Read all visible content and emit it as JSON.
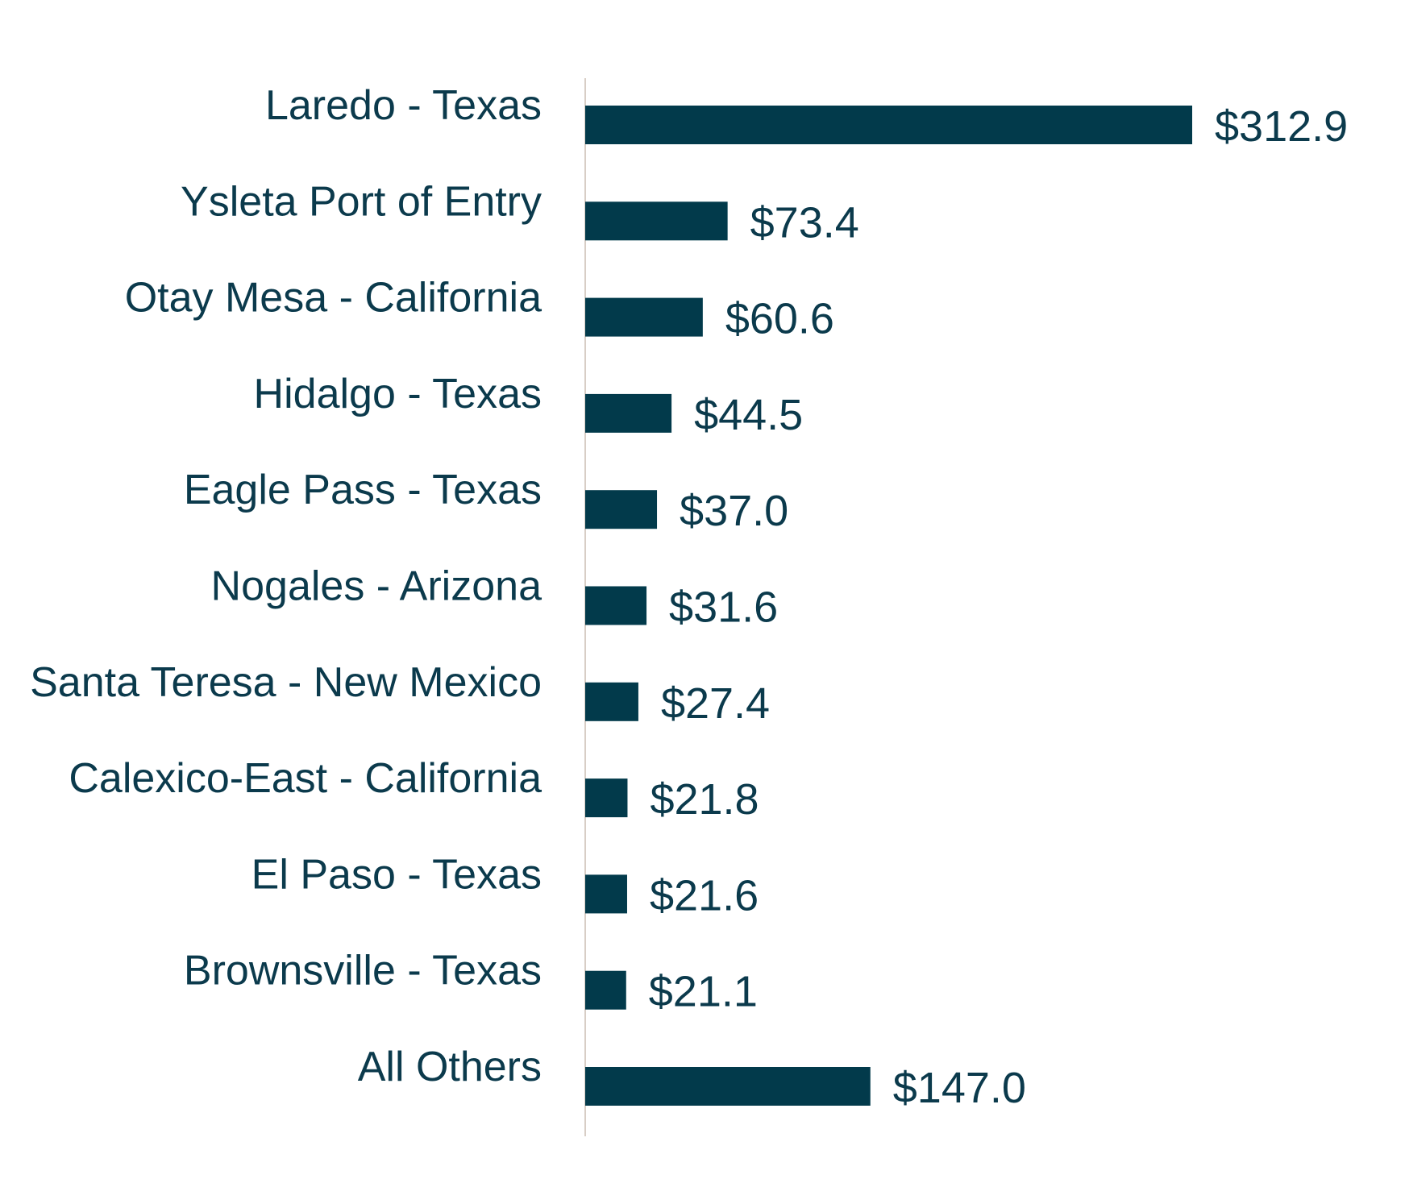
{
  "colors": {
    "bar": "#023a4b",
    "text": "#0b3a4c",
    "axis": "#d8cec6",
    "background": "#ffffff"
  },
  "chart_data": {
    "type": "bar",
    "orientation": "horizontal",
    "categories": [
      "Laredo - Texas",
      "Ysleta Port of Entry",
      "Otay Mesa - California",
      "Hidalgo - Texas",
      "Eagle Pass - Texas",
      "Nogales - Arizona",
      "Santa Teresa - New Mexico",
      "Calexico-East - California",
      "El Paso - Texas",
      "Brownsville - Texas",
      "All Others"
    ],
    "values": [
      312.9,
      73.4,
      60.6,
      44.5,
      37.0,
      31.6,
      27.4,
      21.8,
      21.6,
      21.1,
      147.0
    ],
    "value_labels": [
      "$312.9",
      "$73.4",
      "$60.6",
      "$44.5",
      "$37.0",
      "$31.6",
      "$27.4",
      "$21.8",
      "$21.6",
      "$21.1",
      "$147.0"
    ],
    "xlim": [
      0,
      312.9
    ],
    "grid": false,
    "legend": "none"
  }
}
